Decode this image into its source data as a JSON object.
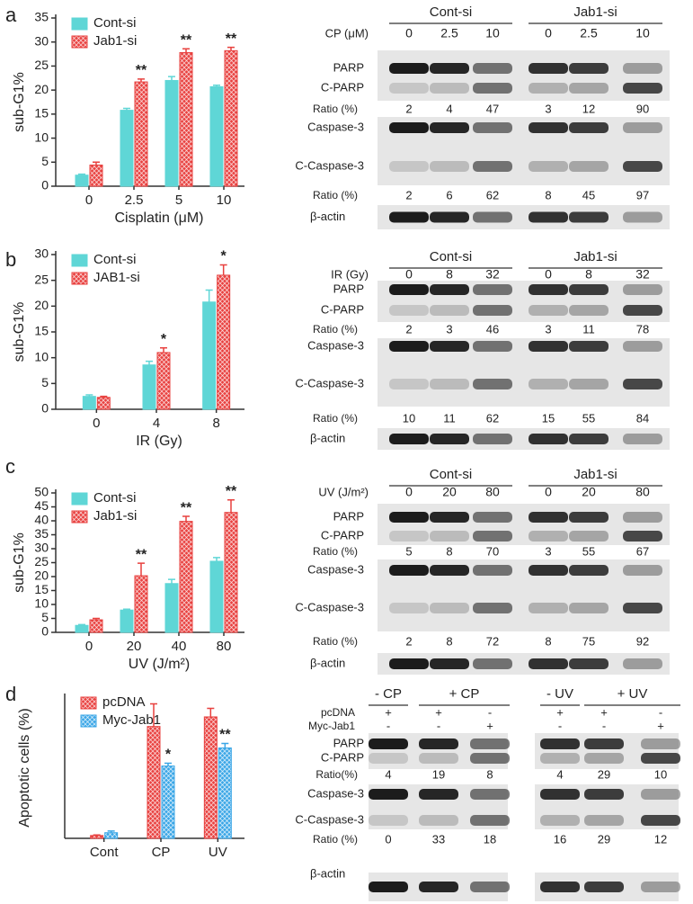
{
  "panels": [
    "a",
    "b",
    "c",
    "d"
  ],
  "chart_data": [
    {
      "type": "bar",
      "ylabel": "sub-G1%",
      "xlabel": "Cisplatin (μM)",
      "categories": [
        0,
        2.5,
        5,
        10
      ],
      "ylim": [
        0,
        35
      ],
      "yticks": [
        0,
        5,
        10,
        15,
        20,
        25,
        30,
        35
      ],
      "series": [
        {
          "name": "Cont-si",
          "color": "#5fd6d6",
          "hatch": false,
          "values": [
            2.3,
            15.8,
            22,
            20.7
          ],
          "errors": [
            0.2,
            0.4,
            0.8,
            0.3
          ],
          "stars": [
            null,
            null,
            null,
            null
          ]
        },
        {
          "name": "Jab1-si",
          "color": "#e8413f",
          "hatch": true,
          "values": [
            4.4,
            21.7,
            27.8,
            28.2
          ],
          "errors": [
            0.6,
            0.6,
            0.8,
            0.7
          ],
          "stars": [
            null,
            "**",
            "**",
            "**"
          ]
        }
      ]
    },
    {
      "type": "bar",
      "ylabel": "sub-G1%",
      "xlabel": "IR (Gy)",
      "categories": [
        0,
        4,
        8
      ],
      "ylim": [
        0,
        30
      ],
      "yticks": [
        0,
        5,
        10,
        15,
        20,
        25,
        30
      ],
      "series": [
        {
          "name": "Cont-si",
          "color": "#5fd6d6",
          "hatch": false,
          "values": [
            2.5,
            8.6,
            20.8
          ],
          "errors": [
            0.3,
            0.7,
            2.3
          ],
          "stars": [
            null,
            null,
            null
          ]
        },
        {
          "name": "JAB1-si",
          "color": "#e8413f",
          "hatch": true,
          "values": [
            2.3,
            11.0,
            26.0
          ],
          "errors": [
            0.2,
            0.9,
            2.0
          ],
          "stars": [
            null,
            "*",
            "*"
          ]
        }
      ]
    },
    {
      "type": "bar",
      "ylabel": "sub-G1%",
      "xlabel": "UV (J/m²)",
      "categories": [
        0,
        20,
        40,
        80
      ],
      "ylim": [
        0,
        50
      ],
      "yticks": [
        0,
        5,
        10,
        15,
        20,
        25,
        30,
        35,
        40,
        45,
        50
      ],
      "series": [
        {
          "name": "Cont-si",
          "color": "#5fd6d6",
          "hatch": false,
          "values": [
            2.5,
            8.0,
            17.5,
            25.5
          ],
          "errors": [
            0.3,
            0.3,
            1.5,
            1.3
          ],
          "stars": [
            null,
            null,
            null,
            null
          ]
        },
        {
          "name": "Jab1-si",
          "color": "#e8413f",
          "hatch": true,
          "values": [
            4.5,
            20.3,
            39.8,
            43.0
          ],
          "errors": [
            0.5,
            4.5,
            1.8,
            4.5
          ],
          "stars": [
            null,
            "**",
            "**",
            "**"
          ]
        }
      ]
    },
    {
      "type": "bar",
      "ylabel": "Apoptotic cells (%)",
      "categories": [
        "Cont",
        "CP",
        "UV"
      ],
      "ylim": [
        0,
        25
      ],
      "series": [
        {
          "name": "pcDNA",
          "color": "#e8413f",
          "hatch": true,
          "values": [
            0.5,
            19.8,
            21.5
          ],
          "errors": [
            0.1,
            4.0,
            1.5
          ],
          "stars": [
            null,
            null,
            null
          ]
        },
        {
          "name": "Myc-Jab1",
          "color": "#3aa6e6",
          "hatch": true,
          "values": [
            1.0,
            12.8,
            16.0
          ],
          "errors": [
            0.3,
            0.5,
            0.8
          ],
          "stars": [
            null,
            "*",
            "**"
          ]
        }
      ]
    }
  ],
  "blots": [
    {
      "groups": [
        "Cont-si",
        "Jab1-si"
      ],
      "treatment": "CP (μM)",
      "doses": [
        0,
        2.5,
        10,
        0,
        2.5,
        10
      ],
      "top_rows": [
        "PARP",
        "C-PARP"
      ],
      "top_ratio_label": "Ratio (%)",
      "top_ratios": [
        2,
        4,
        47,
        3,
        12,
        90
      ],
      "bottom_rows": [
        "Caspase-3",
        "C-Caspase-3"
      ],
      "bottom_ratio_label": "Ratio (%)",
      "bottom_ratios": [
        2,
        6,
        62,
        8,
        45,
        97
      ],
      "loading": "β-actin"
    },
    {
      "groups": [
        "Cont-si",
        "Jab1-si"
      ],
      "treatment": "IR (Gy)",
      "doses": [
        0,
        8,
        32,
        0,
        8,
        32
      ],
      "top_rows": [
        "PARP",
        "C-PARP"
      ],
      "top_ratio_label": "Ratio (%)",
      "top_ratios": [
        2,
        3,
        46,
        3,
        11,
        78
      ],
      "bottom_rows": [
        "Caspase-3",
        "C-Caspase-3"
      ],
      "bottom_ratio_label": "Ratio (%)",
      "bottom_ratios": [
        10,
        11,
        62,
        15,
        55,
        84
      ],
      "loading": "β-actin"
    },
    {
      "groups": [
        "Cont-si",
        "Jab1-si"
      ],
      "treatment": "UV (J/m²)",
      "doses": [
        0,
        20,
        80,
        0,
        20,
        80
      ],
      "top_rows": [
        "PARP",
        "C-PARP"
      ],
      "top_ratio_label": "Ratio (%)",
      "top_ratios": [
        5,
        8,
        70,
        3,
        55,
        67
      ],
      "bottom_rows": [
        "Caspase-3",
        "C-Caspase-3"
      ],
      "bottom_ratio_label": "Ratio (%)",
      "bottom_ratios": [
        2,
        8,
        72,
        8,
        75,
        92
      ],
      "loading": "β-actin"
    },
    {
      "groups": [
        "- CP",
        "+ CP",
        "- UV",
        "+ UV"
      ],
      "sign_rows": [
        {
          "name": "pcDNA",
          "signs": [
            "+",
            "+",
            "-",
            "+",
            "+",
            "-"
          ]
        },
        {
          "name": "Myc-Jab1",
          "signs": [
            "-",
            "-",
            "+",
            "-",
            "-",
            "+"
          ]
        }
      ],
      "top_rows": [
        "PARP",
        "C-PARP"
      ],
      "top_ratio_label": "Ratio(%)",
      "top_ratios": [
        4,
        19,
        8,
        4,
        29,
        10
      ],
      "bottom_rows": [
        "Caspase-3",
        "C-Caspase-3"
      ],
      "bottom_ratio_label": "Ratio (%)",
      "bottom_ratios": [
        0,
        33,
        18,
        16,
        29,
        12
      ],
      "loading": "β-actin"
    }
  ]
}
